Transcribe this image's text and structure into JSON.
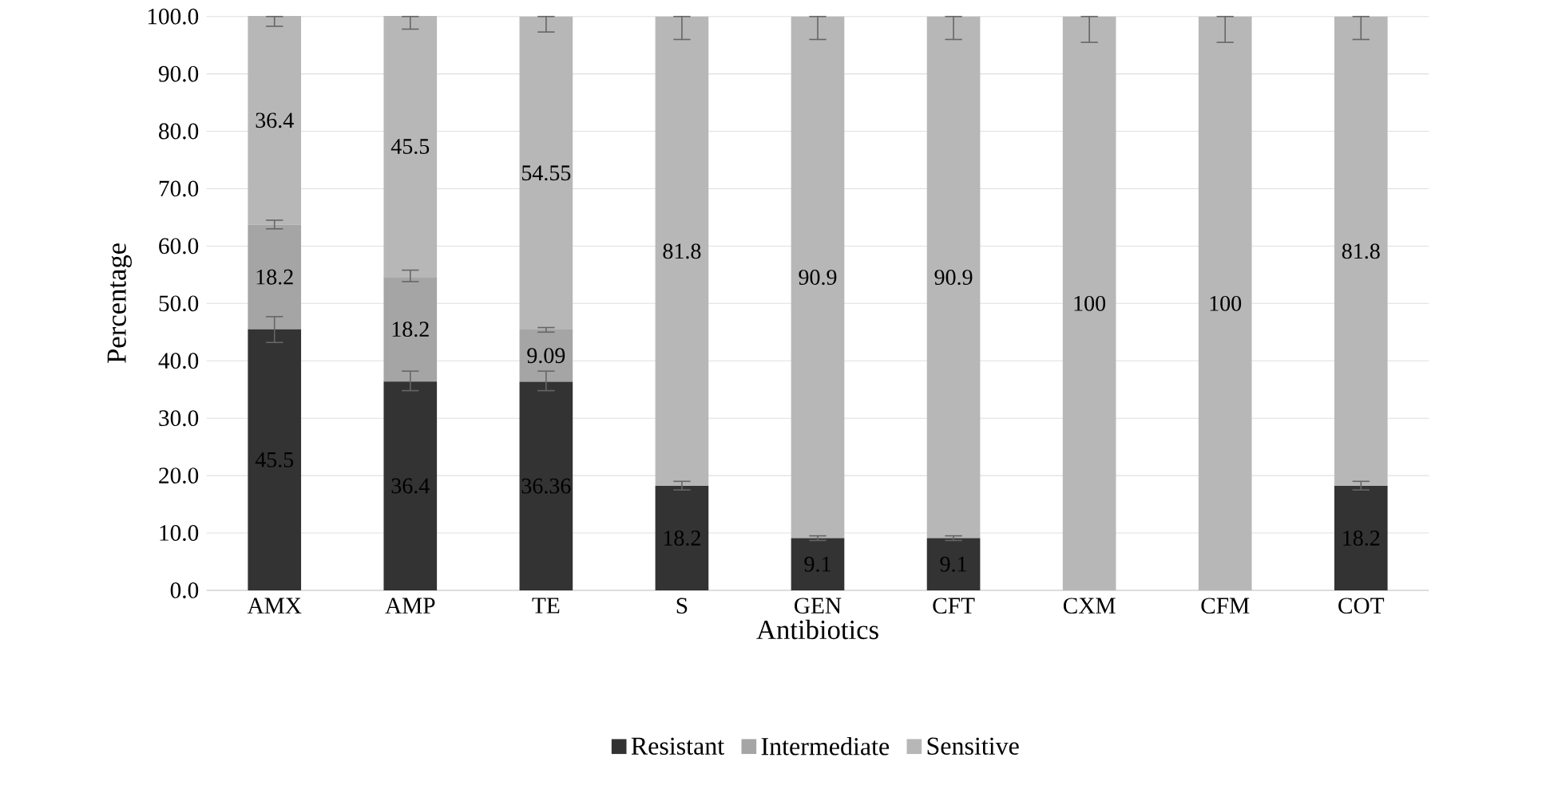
{
  "chart_data": {
    "type": "bar",
    "stacked": true,
    "xlabel": "Antibiotics",
    "ylabel": "Percentage",
    "categories": [
      "AMX",
      "AMP",
      "TE",
      "S",
      "GEN",
      "CFT",
      "CXM",
      "CFM",
      "COT"
    ],
    "series": [
      {
        "name": "Resistant",
        "color": "#333333",
        "values": [
          45.5,
          36.4,
          36.36,
          18.2,
          9.1,
          9.1,
          0,
          0,
          18.2
        ],
        "value_labels": [
          "45.5",
          "36.4",
          "36.36",
          "18.2",
          "9.1",
          "9.1",
          null,
          null,
          "18.2"
        ],
        "errors": [
          [
            43.2,
            47.7
          ],
          [
            34.8,
            38.2
          ],
          [
            34.8,
            38.2
          ],
          [
            17.5,
            19
          ],
          [
            8.7,
            9.5
          ],
          [
            8.7,
            9.5
          ],
          null,
          null,
          [
            17.5,
            19
          ]
        ]
      },
      {
        "name": "Intermediate",
        "color": "#a5a5a5",
        "values": [
          18.2,
          18.2,
          9.09,
          0,
          0,
          0,
          0,
          0,
          0
        ],
        "value_labels": [
          "18.2",
          "18.2",
          "9.09",
          null,
          null,
          null,
          null,
          null,
          null
        ],
        "errors": [
          [
            63,
            64.5
          ],
          [
            53.8,
            55.8
          ],
          [
            45,
            45.8
          ],
          null,
          null,
          null,
          null,
          null,
          null
        ]
      },
      {
        "name": "Sensitive",
        "color": "#b7b7b7",
        "values": [
          36.4,
          45.5,
          54.55,
          81.8,
          90.9,
          90.9,
          100,
          100,
          81.8
        ],
        "value_labels": [
          "36.4",
          "45.5",
          "54.55",
          "81.8",
          "90.9",
          "90.9",
          "100",
          "100",
          "81.8"
        ],
        "errors": [
          [
            98.3,
            100
          ],
          [
            97.8,
            100
          ],
          [
            97.3,
            100
          ],
          [
            96,
            100
          ],
          [
            96,
            100
          ],
          [
            96,
            100
          ],
          [
            95.5,
            100
          ],
          [
            95.5,
            100
          ],
          [
            96,
            100
          ]
        ]
      }
    ],
    "ylim": [
      0,
      100.1
    ],
    "yticks": [
      {
        "value": 0,
        "label": "0.0"
      },
      {
        "value": 10,
        "label": "10.0"
      },
      {
        "value": 20,
        "label": "20.0"
      },
      {
        "value": 30,
        "label": "30.0"
      },
      {
        "value": 40,
        "label": "40.0"
      },
      {
        "value": 50,
        "label": "50.0"
      },
      {
        "value": 60,
        "label": "60.0"
      },
      {
        "value": 70,
        "label": "70.0"
      },
      {
        "value": 80,
        "label": "80.0"
      },
      {
        "value": 90,
        "label": "90.0"
      },
      {
        "value": 100,
        "label": "100.0"
      }
    ],
    "grid": "y",
    "legend": "bottom"
  }
}
